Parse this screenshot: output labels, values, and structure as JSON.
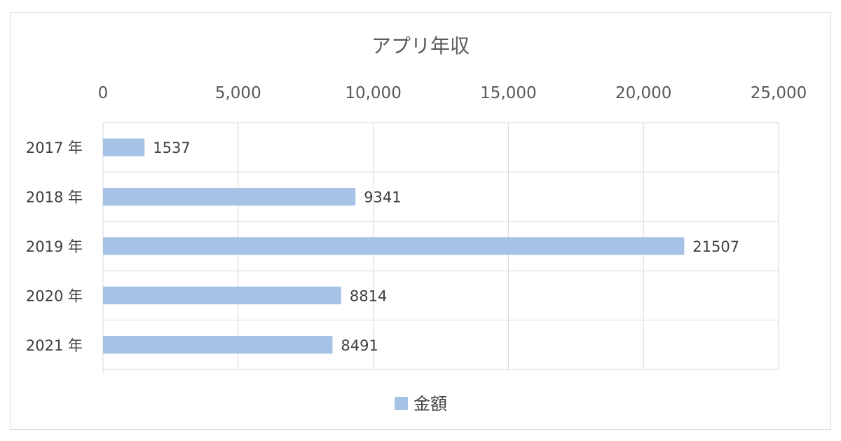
{
  "chart_data": {
    "type": "bar",
    "orientation": "horizontal",
    "title": "アプリ年収",
    "categories": [
      "2017 年",
      "2018 年",
      "2019 年",
      "2020 年",
      "2021 年"
    ],
    "series": [
      {
        "name": "金額",
        "values": [
          1537,
          9341,
          21507,
          8814,
          8491
        ],
        "color": "#a6c3e5"
      }
    ],
    "data_labels": [
      "1537",
      "9341",
      "21507",
      "8814",
      "8491"
    ],
    "x_axis": {
      "position": "top",
      "range": [
        0,
        25000
      ],
      "ticks": [
        0,
        5000,
        10000,
        15000,
        20000,
        25000
      ],
      "tick_labels": [
        "0",
        "5,000",
        "10,000",
        "15,000",
        "20,000",
        "25,000"
      ]
    },
    "grid": true,
    "legend": {
      "position": "bottom",
      "entries": [
        "金額"
      ]
    },
    "colors": {
      "bar": "#a6c3e5",
      "grid": "#d9d9d9",
      "text": "#595959"
    }
  }
}
